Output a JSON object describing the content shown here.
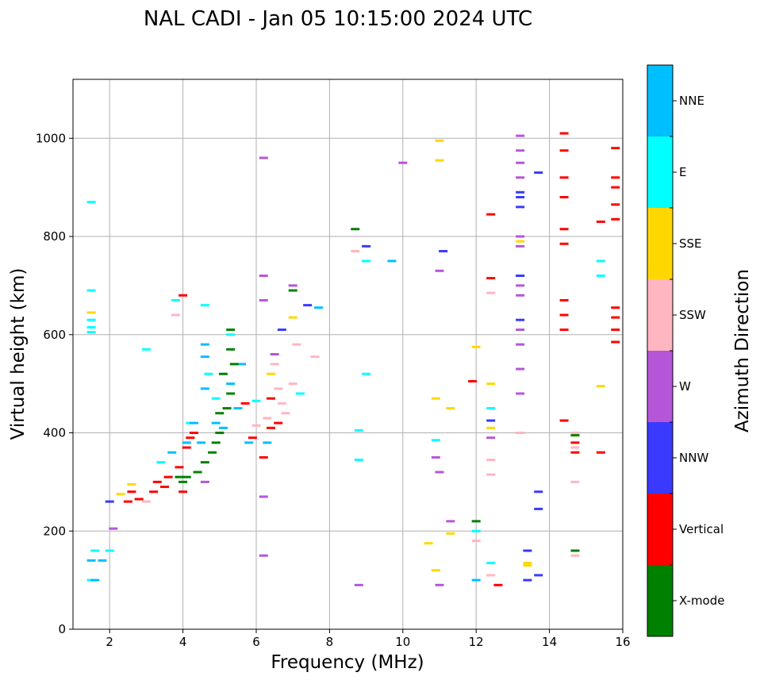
{
  "chart_data": {
    "type": "scatter",
    "title": "NAL CADI - Jan 05 10:15:00 2024 UTC",
    "xlabel": "Frequency (MHz)",
    "ylabel": "Virtual height (km)",
    "xlim": [
      1,
      16
    ],
    "ylim": [
      0,
      1120
    ],
    "xticks": [
      2,
      4,
      6,
      8,
      10,
      12,
      14,
      16
    ],
    "yticks": [
      0,
      200,
      400,
      600,
      800,
      1000
    ],
    "grid": true,
    "colorbar": {
      "label": "Azimuth Direction",
      "categories": [
        {
          "name": "X-mode",
          "color": "#008000"
        },
        {
          "name": "Vertical",
          "color": "#ff0000"
        },
        {
          "name": "NNW",
          "color": "#3a3aff"
        },
        {
          "name": "W",
          "color": "#b556d8"
        },
        {
          "name": "SSW",
          "color": "#ffb6c1"
        },
        {
          "name": "SSE",
          "color": "#ffd700"
        },
        {
          "name": "E",
          "color": "#00ffff"
        },
        {
          "name": "NNE",
          "color": "#00bfff"
        }
      ]
    },
    "point_groups": [
      {
        "category": "E",
        "points": [
          [
            1.5,
            870
          ],
          [
            1.5,
            690
          ],
          [
            1.5,
            630
          ],
          [
            1.5,
            615
          ],
          [
            1.5,
            605
          ],
          [
            3.0,
            570
          ],
          [
            4.6,
            660
          ],
          [
            4.7,
            520
          ],
          [
            5.3,
            600
          ],
          [
            9.0,
            750
          ],
          [
            9.0,
            520
          ],
          [
            8.8,
            405
          ],
          [
            8.8,
            345
          ],
          [
            12.0,
            200
          ],
          [
            12.4,
            450
          ],
          [
            12.4,
            135
          ],
          [
            15.4,
            750
          ],
          [
            15.4,
            720
          ],
          [
            6.0,
            465
          ],
          [
            7.2,
            480
          ],
          [
            3.4,
            340
          ],
          [
            4.9,
            470
          ],
          [
            1.6,
            160
          ],
          [
            1.5,
            100
          ],
          [
            2.0,
            160
          ],
          [
            3.8,
            670
          ],
          [
            4.2,
            420
          ],
          [
            10.9,
            385
          ]
        ]
      },
      {
        "category": "NNE",
        "points": [
          [
            4.6,
            580
          ],
          [
            4.6,
            555
          ],
          [
            4.6,
            490
          ],
          [
            4.9,
            420
          ],
          [
            5.3,
            500
          ],
          [
            5.5,
            450
          ],
          [
            3.7,
            360
          ],
          [
            4.3,
            420
          ],
          [
            1.5,
            140
          ],
          [
            1.6,
            100
          ],
          [
            9.7,
            750
          ],
          [
            12.0,
            100
          ],
          [
            4.1,
            380
          ],
          [
            5.6,
            540
          ],
          [
            6.3,
            380
          ],
          [
            4.5,
            380
          ],
          [
            5.1,
            410
          ],
          [
            7.7,
            655
          ],
          [
            5.8,
            380
          ],
          [
            1.8,
            140
          ]
        ]
      },
      {
        "category": "X-mode",
        "points": [
          [
            5.3,
            610
          ],
          [
            5.3,
            570
          ],
          [
            5.3,
            480
          ],
          [
            5.2,
            450
          ],
          [
            5.0,
            400
          ],
          [
            4.9,
            380
          ],
          [
            4.8,
            360
          ],
          [
            4.6,
            340
          ],
          [
            4.4,
            320
          ],
          [
            4.1,
            310
          ],
          [
            4.0,
            300
          ],
          [
            3.9,
            310
          ],
          [
            5.4,
            540
          ],
          [
            8.7,
            815
          ],
          [
            12.0,
            220
          ],
          [
            14.7,
            395
          ],
          [
            14.7,
            160
          ],
          [
            7.0,
            690
          ],
          [
            5.1,
            520
          ],
          [
            5.0,
            440
          ]
        ]
      },
      {
        "category": "Vertical",
        "points": [
          [
            14.4,
            1010
          ],
          [
            14.4,
            975
          ],
          [
            14.4,
            920
          ],
          [
            14.4,
            880
          ],
          [
            14.4,
            815
          ],
          [
            14.4,
            785
          ],
          [
            14.4,
            670
          ],
          [
            14.4,
            640
          ],
          [
            14.4,
            610
          ],
          [
            14.4,
            425
          ],
          [
            15.8,
            980
          ],
          [
            15.8,
            920
          ],
          [
            15.8,
            900
          ],
          [
            15.8,
            865
          ],
          [
            15.8,
            835
          ],
          [
            15.8,
            655
          ],
          [
            15.8,
            635
          ],
          [
            15.8,
            610
          ],
          [
            15.8,
            585
          ],
          [
            15.4,
            830
          ],
          [
            15.4,
            360
          ],
          [
            12.4,
            845
          ],
          [
            12.4,
            715
          ],
          [
            12.6,
            90
          ],
          [
            11.9,
            505
          ],
          [
            14.7,
            380
          ],
          [
            14.7,
            360
          ],
          [
            2.6,
            280
          ],
          [
            2.8,
            265
          ],
          [
            3.3,
            300
          ],
          [
            3.6,
            310
          ],
          [
            3.9,
            330
          ],
          [
            4.1,
            370
          ],
          [
            4.2,
            390
          ],
          [
            6.4,
            410
          ],
          [
            6.4,
            470
          ],
          [
            6.2,
            350
          ],
          [
            4.0,
            680
          ],
          [
            4.0,
            280
          ],
          [
            3.2,
            280
          ],
          [
            3.5,
            290
          ],
          [
            5.7,
            460
          ],
          [
            5.9,
            390
          ],
          [
            6.6,
            420
          ],
          [
            2.5,
            260
          ],
          [
            4.3,
            400
          ]
        ]
      },
      {
        "category": "NNW",
        "points": [
          [
            13.2,
            880
          ],
          [
            13.2,
            890
          ],
          [
            13.2,
            860
          ],
          [
            13.2,
            720
          ],
          [
            13.2,
            630
          ],
          [
            13.2,
            720
          ],
          [
            13.7,
            280
          ],
          [
            13.7,
            245
          ],
          [
            13.7,
            110
          ],
          [
            13.4,
            100
          ],
          [
            13.4,
            160
          ],
          [
            12.4,
            425
          ],
          [
            11.1,
            770
          ],
          [
            9.0,
            780
          ],
          [
            6.7,
            610
          ],
          [
            7.4,
            660
          ],
          [
            13.7,
            930
          ],
          [
            2.0,
            260
          ]
        ]
      },
      {
        "category": "W",
        "points": [
          [
            13.2,
            1005
          ],
          [
            13.2,
            975
          ],
          [
            13.2,
            950
          ],
          [
            13.2,
            920
          ],
          [
            13.2,
            800
          ],
          [
            13.2,
            780
          ],
          [
            13.2,
            700
          ],
          [
            13.2,
            680
          ],
          [
            13.2,
            610
          ],
          [
            13.2,
            580
          ],
          [
            13.2,
            530
          ],
          [
            13.2,
            480
          ],
          [
            13.2,
            400
          ],
          [
            6.2,
            960
          ],
          [
            6.2,
            720
          ],
          [
            6.2,
            670
          ],
          [
            6.2,
            270
          ],
          [
            6.2,
            150
          ],
          [
            10.0,
            950
          ],
          [
            11.0,
            730
          ],
          [
            10.9,
            350
          ],
          [
            11.0,
            320
          ],
          [
            11.3,
            220
          ],
          [
            12.4,
            390
          ],
          [
            6.5,
            560
          ],
          [
            7.0,
            700
          ],
          [
            8.8,
            90
          ],
          [
            11.0,
            90
          ],
          [
            2.1,
            205
          ],
          [
            4.6,
            300
          ]
        ]
      },
      {
        "category": "SSW",
        "points": [
          [
            12.4,
            685
          ],
          [
            12.4,
            345
          ],
          [
            12.4,
            315
          ],
          [
            12.4,
            110
          ],
          [
            14.7,
            400
          ],
          [
            14.7,
            370
          ],
          [
            14.7,
            300
          ],
          [
            14.7,
            150
          ],
          [
            13.2,
            400
          ],
          [
            8.7,
            770
          ],
          [
            12.0,
            180
          ],
          [
            6.5,
            540
          ],
          [
            6.6,
            490
          ],
          [
            6.7,
            460
          ],
          [
            6.8,
            440
          ],
          [
            6.3,
            430
          ],
          [
            7.0,
            500
          ],
          [
            7.6,
            555
          ],
          [
            7.1,
            580
          ],
          [
            6.0,
            415
          ],
          [
            3.8,
            640
          ],
          [
            3.0,
            260
          ]
        ]
      },
      {
        "category": "SSE",
        "points": [
          [
            11.0,
            995
          ],
          [
            11.0,
            955
          ],
          [
            12.4,
            500
          ],
          [
            12.4,
            410
          ],
          [
            12.0,
            575
          ],
          [
            10.9,
            470
          ],
          [
            11.3,
            450
          ],
          [
            11.3,
            195
          ],
          [
            10.7,
            175
          ],
          [
            10.9,
            120
          ],
          [
            13.4,
            135
          ],
          [
            13.4,
            130
          ],
          [
            15.4,
            495
          ],
          [
            6.4,
            520
          ],
          [
            7.0,
            635
          ],
          [
            1.5,
            645
          ],
          [
            2.6,
            295
          ],
          [
            2.3,
            275
          ],
          [
            13.2,
            790
          ]
        ]
      }
    ]
  }
}
